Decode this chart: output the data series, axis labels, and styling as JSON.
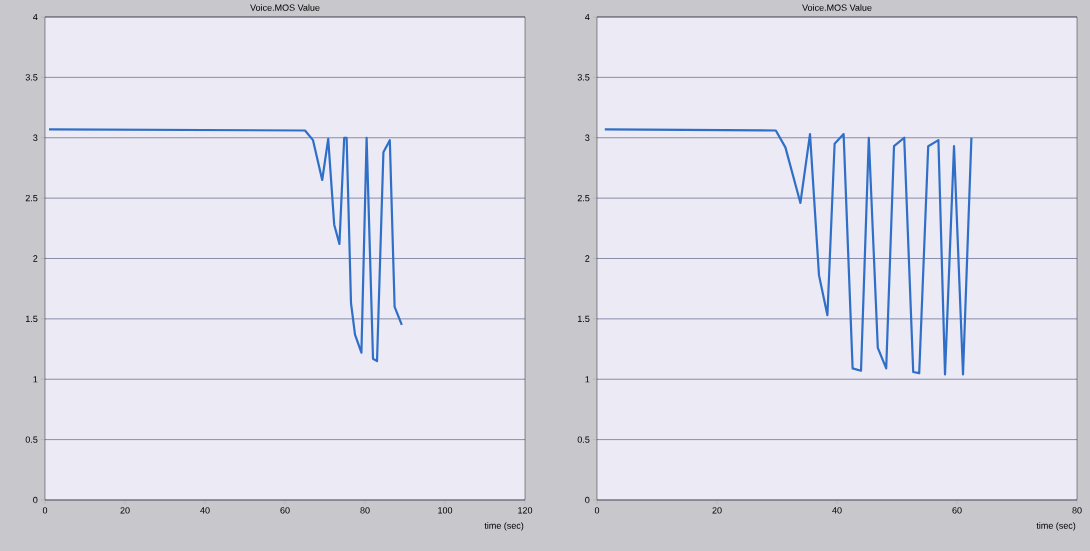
{
  "chart_data": [
    {
      "type": "line",
      "title": "Voice.MOS Value",
      "xlabel": "time (sec)",
      "xlim": [
        0,
        120
      ],
      "ylim": [
        0,
        4
      ],
      "xticks": [
        0,
        20,
        40,
        60,
        80,
        100,
        120
      ],
      "yticks": [
        0,
        0.5,
        1,
        1.5,
        2,
        2.5,
        3,
        3.5,
        4
      ],
      "grid": "y",
      "marker": "none",
      "line_style": "solid",
      "series": [
        {
          "color": "#2f6fc7",
          "x": [
            1,
            65,
            67,
            69.3,
            70.8,
            72.3,
            73.6,
            74.8,
            75.4,
            76.5,
            77.5,
            79.1,
            80.4,
            82,
            83,
            84.6,
            86.2,
            87.4,
            89.2
          ],
          "values": [
            3.07,
            3.06,
            2.98,
            2.65,
            2.99,
            2.28,
            2.12,
            3.0,
            3.0,
            1.63,
            1.37,
            1.22,
            3.0,
            1.17,
            1.15,
            2.88,
            2.98,
            1.6,
            1.45
          ]
        }
      ]
    },
    {
      "type": "line",
      "title": "Voice.MOS Value",
      "xlabel": "time (sec)",
      "xlim": [
        0,
        80
      ],
      "ylim": [
        0,
        4
      ],
      "xticks": [
        0,
        20,
        40,
        60,
        80
      ],
      "yticks": [
        0,
        0.5,
        1,
        1.5,
        2,
        2.5,
        3,
        3.5,
        4
      ],
      "grid": "y",
      "marker": "none",
      "line_style": "solid",
      "series": [
        {
          "color": "#2f6fc7",
          "x": [
            1.3,
            29.8,
            31.4,
            33.9,
            35.5,
            37,
            38.4,
            39.6,
            41.1,
            42.6,
            44,
            45.3,
            46.8,
            48.2,
            49.5,
            51.2,
            52.7,
            53.7,
            55.2,
            56.9,
            58,
            59.5,
            61,
            62.4
          ],
          "values": [
            3.07,
            3.06,
            2.92,
            2.46,
            3.03,
            1.86,
            1.53,
            2.95,
            3.03,
            1.09,
            1.07,
            3.0,
            1.26,
            1.09,
            2.93,
            3.0,
            1.06,
            1.05,
            2.93,
            2.98,
            1.04,
            2.93,
            1.04,
            3.0
          ]
        }
      ]
    }
  ]
}
